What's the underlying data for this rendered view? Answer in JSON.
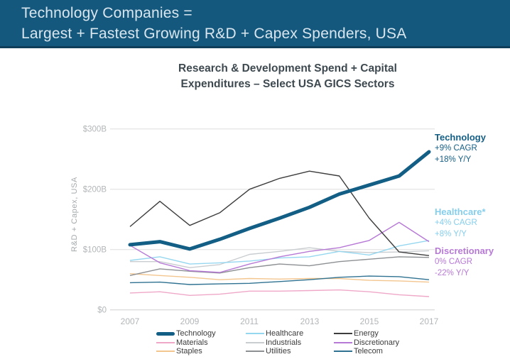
{
  "header": {
    "line1": "Technology Companies =",
    "line2": "Largest + Fastest Growing R&D + Capex Spenders, USA",
    "bg_color": "#15587e",
    "text_color": "#d9e6ee"
  },
  "chart": {
    "title_line1": "Research & Development Spend + Capital",
    "title_line2": "Expenditures – Select USA GICS Sectors",
    "y_axis_label": "R&D + Capex, USA",
    "y_ticks": [
      "$0",
      "$100B",
      "$200B",
      "$300B"
    ],
    "x_ticks": [
      "2007",
      "2009",
      "2011",
      "2013",
      "2015",
      "2017"
    ]
  },
  "annotations": [
    {
      "label": "Technology",
      "line1": "+9% CAGR",
      "line2": "+18% Y/Y",
      "color": "#135e85"
    },
    {
      "label": "Healthcare*",
      "line1": "+4% CAGR",
      "line2": "+8% Y/Y",
      "color": "#85ceec"
    },
    {
      "label": "Discretionary",
      "line1": "0% CAGR",
      "line2": "-22% Y/Y",
      "color": "#b779d6"
    }
  ],
  "legend": {
    "items": [
      {
        "label": "Technology",
        "color": "#135e85",
        "thick": true
      },
      {
        "label": "Healthcare",
        "color": "#96d7f0"
      },
      {
        "label": "Energy",
        "color": "#3d3d3d"
      },
      {
        "label": "Materials",
        "color": "#efa8c8"
      },
      {
        "label": "Industrials",
        "color": "#c9cdd0"
      },
      {
        "label": "Discretionary",
        "color": "#b779d6"
      },
      {
        "label": "Staples",
        "color": "#f3c68f"
      },
      {
        "label": "Utilities",
        "color": "#8d9093"
      },
      {
        "label": "Telecom",
        "color": "#2f7291"
      }
    ]
  },
  "chart_data": {
    "type": "line",
    "title": "Research & Development Spend + Capital Expenditures – Select USA GICS Sectors",
    "ylabel": "R&D + Capex, USA",
    "y_unit": "USD billions",
    "x": [
      2007,
      2008,
      2009,
      2010,
      2011,
      2012,
      2013,
      2014,
      2015,
      2016,
      2017
    ],
    "xlim": [
      2007,
      2017
    ],
    "ylim": [
      0,
      300
    ],
    "y_tick_step": 100,
    "grid": "horizontal",
    "legend_position": "bottom",
    "series": [
      {
        "name": "Materials",
        "color": "#efa8c8",
        "values": [
          28,
          30,
          24,
          26,
          31,
          31,
          32,
          33,
          30,
          25,
          22
        ]
      },
      {
        "name": "Staples",
        "color": "#f3c68f",
        "values": [
          60,
          57,
          54,
          50,
          52,
          51,
          52,
          52,
          49,
          48,
          46
        ]
      },
      {
        "name": "Telecom",
        "color": "#2f7291",
        "values": [
          45,
          46,
          42,
          43,
          44,
          47,
          50,
          54,
          56,
          55,
          50
        ]
      },
      {
        "name": "Industrials",
        "color": "#c9cdd0",
        "values": [
          80,
          80,
          70,
          75,
          92,
          97,
          103,
          97,
          95,
          96,
          98
        ]
      },
      {
        "name": "Utilities",
        "color": "#8d9093",
        "values": [
          57,
          68,
          64,
          61,
          70,
          76,
          73,
          80,
          84,
          88,
          87
        ]
      },
      {
        "name": "Healthcare",
        "color": "#96d7f0",
        "values": [
          82,
          88,
          76,
          78,
          81,
          86,
          88,
          97,
          91,
          106,
          115
        ]
      },
      {
        "name": "Discretionary",
        "color": "#b779d6",
        "values": [
          107,
          78,
          65,
          62,
          76,
          88,
          97,
          103,
          115,
          145,
          113
        ]
      },
      {
        "name": "Energy",
        "color": "#3d3d3d",
        "values": [
          138,
          180,
          140,
          161,
          200,
          218,
          230,
          222,
          152,
          96,
          90
        ]
      },
      {
        "name": "Technology",
        "color": "#135e85",
        "thick": true,
        "values": [
          108,
          113,
          101,
          117,
          135,
          152,
          170,
          192,
          207,
          222,
          262
        ]
      }
    ]
  }
}
